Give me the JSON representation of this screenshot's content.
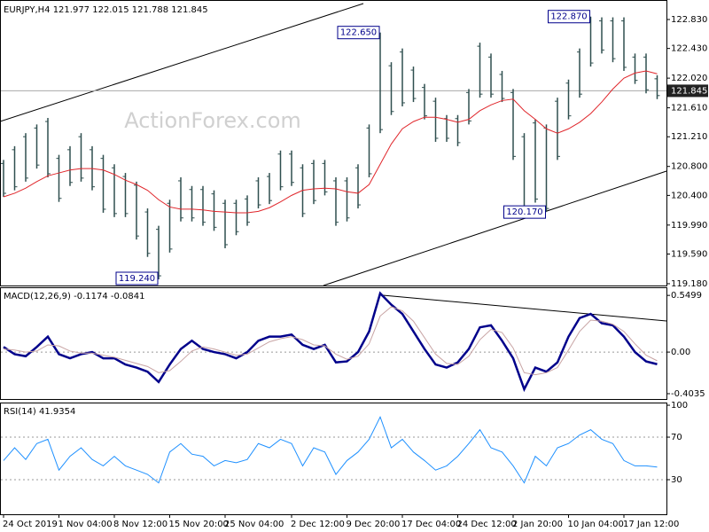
{
  "chart_data": [
    {
      "type": "ohlc",
      "title": "EURJPY,H4  121.977 122.015 121.788 121.845",
      "watermark": "ActionForex.com",
      "categories": [
        "24 Oct 2019",
        null,
        null,
        null,
        null,
        "1 Nov 04:00",
        null,
        null,
        null,
        null,
        "8 Nov 12:00",
        null,
        null,
        null,
        null,
        "15 Nov 20:00",
        null,
        null,
        null,
        null,
        "25 Nov 04:00",
        null,
        null,
        null,
        null,
        null,
        "2 Dec 12:00",
        null,
        null,
        null,
        null,
        "9 Dec 20:00",
        null,
        null,
        null,
        null,
        "17 Dec 04:00",
        null,
        null,
        null,
        null,
        "24 Dec 12:00",
        null,
        null,
        null,
        null,
        "2 Jan 20:00",
        null,
        null,
        null,
        null,
        "10 Jan 04:00",
        null,
        null,
        null,
        null,
        "17 Jan 12:00",
        null,
        null,
        null
      ],
      "color": "#2f4f4f",
      "highs": [
        120.89,
        121.08,
        121.26,
        121.38,
        121.47,
        120.96,
        121.08,
        121.26,
        121.08,
        120.96,
        120.83,
        120.71,
        120.59,
        120.22,
        119.98,
        120.34,
        120.65,
        120.53,
        120.53,
        120.47,
        120.34,
        120.34,
        120.4,
        120.65,
        120.71,
        121.02,
        121.02,
        120.83,
        120.89,
        120.89,
        120.65,
        120.65,
        120.83,
        121.38,
        122.65,
        122.24,
        122.43,
        122.18,
        121.94,
        121.75,
        121.51,
        121.51,
        121.87,
        122.51,
        122.36,
        122.12,
        121.87,
        121.26,
        121.45,
        121.38,
        121.75,
        122.0,
        122.43,
        122.87,
        122.86,
        122.86,
        122.86,
        122.36,
        122.36,
        122.06
      ],
      "lows": [
        120.38,
        120.47,
        120.59,
        120.77,
        120.65,
        120.31,
        120.53,
        120.59,
        120.47,
        120.16,
        120.1,
        120.1,
        119.79,
        119.55,
        119.24,
        119.61,
        120.04,
        120.04,
        119.98,
        119.91,
        119.67,
        119.85,
        119.98,
        120.22,
        120.28,
        120.47,
        120.53,
        120.1,
        120.28,
        120.4,
        119.98,
        120.04,
        120.22,
        120.65,
        121.26,
        121.51,
        121.63,
        121.69,
        121.45,
        121.14,
        121.14,
        121.08,
        121.38,
        121.75,
        121.75,
        121.69,
        120.89,
        120.2,
        120.3,
        120.17,
        120.89,
        121.45,
        121.75,
        122.18,
        122.36,
        122.24,
        122.12,
        121.94,
        121.81,
        121.73
      ],
      "ma": {
        "color": "#e0262b",
        "values": [
          120.38,
          120.43,
          120.5,
          120.59,
          120.67,
          120.71,
          120.75,
          120.77,
          120.77,
          120.75,
          120.69,
          120.61,
          120.55,
          120.47,
          120.34,
          120.24,
          120.21,
          120.21,
          120.2,
          120.18,
          120.17,
          120.16,
          120.16,
          120.18,
          120.23,
          120.31,
          120.4,
          120.47,
          120.49,
          120.5,
          120.49,
          120.45,
          120.43,
          120.55,
          120.83,
          121.11,
          121.32,
          121.42,
          121.48,
          121.48,
          121.45,
          121.41,
          121.45,
          121.57,
          121.65,
          121.71,
          121.73,
          121.57,
          121.45,
          121.32,
          121.26,
          121.32,
          121.41,
          121.53,
          121.69,
          121.87,
          122.02,
          122.09,
          122.12,
          122.08
        ]
      },
      "annotations": [
        {
          "value": 122.65,
          "label": "122.650"
        },
        {
          "value": 119.24,
          "label": "119.240"
        },
        {
          "value": 120.17,
          "label": "120.170"
        },
        {
          "value": 122.87,
          "label": "122.870"
        }
      ],
      "last": {
        "value": 121.845,
        "label": "121.845"
      },
      "ylim": [
        119.155,
        123.075
      ],
      "yticks": [
        {
          "value": 122.83,
          "label": "122.830"
        },
        {
          "value": 122.43,
          "label": "122.430"
        },
        {
          "value": 122.02,
          "label": "122.020"
        },
        {
          "value": 121.61,
          "label": "121.610"
        },
        {
          "value": 121.21,
          "label": "121.210"
        },
        {
          "value": 120.8,
          "label": "120.800"
        },
        {
          "value": 120.4,
          "label": "120.400"
        },
        {
          "value": 119.99,
          "label": "119.990"
        },
        {
          "value": 119.59,
          "label": "119.590"
        },
        {
          "value": 119.18,
          "label": "119.180"
        }
      ]
    },
    {
      "type": "line",
      "title": "MACD(12,26,9) -0.1174 -0.0841",
      "series": [
        {
          "color": "#00008b",
          "values": [
            0.05,
            -0.02,
            -0.04,
            0.05,
            0.15,
            -0.02,
            -0.06,
            -0.02,
            0.0,
            -0.06,
            -0.06,
            -0.12,
            -0.15,
            -0.19,
            -0.29,
            -0.12,
            0.03,
            0.11,
            0.03,
            0.0,
            -0.02,
            -0.06,
            0.0,
            0.11,
            0.15,
            0.15,
            0.17,
            0.07,
            0.03,
            0.07,
            -0.1,
            -0.09,
            0.0,
            0.2,
            0.57,
            0.46,
            0.37,
            0.2,
            0.03,
            -0.12,
            -0.15,
            -0.1,
            0.03,
            0.24,
            0.26,
            0.11,
            -0.06,
            -0.36,
            -0.15,
            -0.19,
            -0.1,
            0.15,
            0.33,
            0.37,
            0.28,
            0.26,
            0.15,
            0.0,
            -0.09,
            -0.1174
          ]
        },
        {
          "color": "#c8a4a4",
          "values": [
            0.03,
            0.02,
            0.0,
            0.01,
            0.07,
            0.06,
            0.01,
            -0.01,
            -0.01,
            -0.03,
            -0.05,
            -0.08,
            -0.11,
            -0.14,
            -0.2,
            -0.18,
            -0.09,
            0.01,
            0.05,
            0.03,
            0.0,
            -0.03,
            -0.02,
            0.04,
            0.1,
            0.13,
            0.15,
            0.12,
            0.07,
            0.06,
            -0.02,
            -0.07,
            -0.04,
            0.08,
            0.35,
            0.44,
            0.4,
            0.3,
            0.14,
            -0.02,
            -0.11,
            -0.12,
            -0.04,
            0.12,
            0.22,
            0.19,
            0.04,
            -0.2,
            -0.22,
            -0.2,
            -0.15,
            0.02,
            0.2,
            0.31,
            0.3,
            0.27,
            0.2,
            0.08,
            -0.03,
            -0.0841
          ]
        }
      ],
      "levels": [
        0
      ],
      "ylim": [
        -0.455,
        0.62
      ],
      "yticks": [
        0.5499,
        {
          "value": 0,
          "label": "0.00"
        },
        -0.4035
      ]
    },
    {
      "type": "line",
      "title": "RSI(14) 41.9354",
      "series": [
        {
          "color": "#1e90ff",
          "values": [
            48,
            60,
            49,
            64,
            68,
            39,
            52,
            60,
            49,
            43,
            52,
            43,
            39,
            35,
            27,
            56,
            64,
            54,
            52,
            43,
            48,
            46,
            49,
            64,
            60,
            68,
            64,
            43,
            60,
            56,
            35,
            48,
            56,
            68,
            89,
            60,
            68,
            56,
            48,
            39,
            43,
            52,
            64,
            77,
            60,
            56,
            43,
            27,
            52,
            43,
            60,
            64,
            72,
            77,
            68,
            64,
            48,
            43,
            43,
            41.9354
          ]
        }
      ],
      "levels": [
        70,
        30
      ],
      "ylim": [
        -2.5,
        101.7
      ],
      "yticks": [
        100,
        70,
        30
      ]
    }
  ]
}
